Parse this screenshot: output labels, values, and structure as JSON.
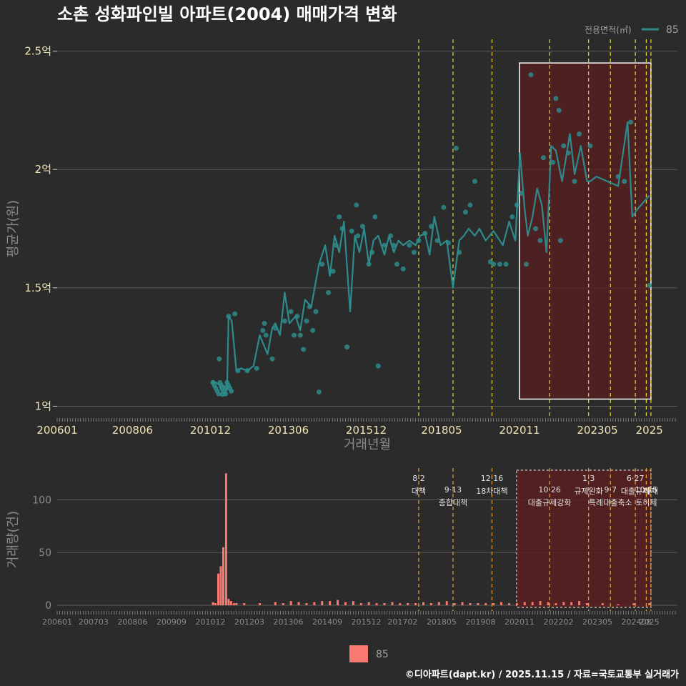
{
  "chart_data": [
    {
      "type": "line",
      "title": "소촌 성화파인빌 아파트(2004) 매매가격 변화",
      "xlabel": "거래년월",
      "ylabel": "평균가(원)",
      "y_tick_labels": [
        "1억",
        "1.5억",
        "2억",
        "2.5억"
      ],
      "y_tick_values": [
        1.0,
        1.5,
        2.0,
        2.5
      ],
      "x_tick_labels": [
        "200601",
        "200806",
        "201012",
        "201306",
        "201512",
        "201805",
        "202011",
        "202305",
        "2025"
      ],
      "x_tick_values": [
        2006.0,
        2008.417,
        2010.917,
        2013.417,
        2015.917,
        2018.333,
        2020.833,
        2023.333,
        2025.0
      ],
      "xlim": [
        2006.0,
        2025.9
      ],
      "ylim": [
        0.95,
        2.55
      ],
      "legend_title": "전용면적(㎡)",
      "legend_entries": [
        "85"
      ],
      "series_color": "#2e8b8b",
      "highlight_color": "#ffffff",
      "policy_line_color": "#e6d93a",
      "highlight_range": [
        2020.83,
        2025.05
      ],
      "highlight_y": [
        1.03,
        2.45
      ],
      "series": [
        {
          "name": "85",
          "x": [
            2011.0,
            2011.1,
            2011.2,
            2011.25,
            2011.35,
            2011.45,
            2011.5,
            2011.6,
            2011.75,
            2011.9,
            2012.1,
            2012.3,
            2012.5,
            2012.75,
            2012.9,
            2013.0,
            2013.15,
            2013.3,
            2013.45,
            2013.65,
            2013.8,
            2013.95,
            2014.15,
            2014.4,
            2014.6,
            2014.75,
            2014.9,
            2015.05,
            2015.2,
            2015.4,
            2015.55,
            2015.7,
            2015.85,
            2016.0,
            2016.15,
            2016.3,
            2016.5,
            2016.65,
            2016.8,
            2016.95,
            2017.1,
            2017.3,
            2017.5,
            2017.65,
            2017.8,
            2017.95,
            2018.1,
            2018.3,
            2018.5,
            2018.7,
            2018.9,
            2019.05,
            2019.2,
            2019.4,
            2019.55,
            2019.75,
            2020.0,
            2020.3,
            2020.5,
            2020.7,
            2020.85,
            2021.0,
            2021.1,
            2021.25,
            2021.4,
            2021.55,
            2021.7,
            2021.85,
            2022.0,
            2022.2,
            2022.45,
            2022.6,
            2022.8,
            2023.0,
            2023.1,
            2023.3,
            2024.0,
            2024.3,
            2024.45,
            2024.6,
            2025.0
          ],
          "y": [
            1.1,
            1.1,
            1.09,
            1.07,
            1.05,
            1.07,
            1.38,
            1.36,
            1.15,
            1.16,
            1.15,
            1.17,
            1.3,
            1.22,
            1.33,
            1.35,
            1.3,
            1.48,
            1.35,
            1.38,
            1.32,
            1.45,
            1.42,
            1.6,
            1.68,
            1.55,
            1.72,
            1.65,
            1.78,
            1.4,
            1.72,
            1.65,
            1.75,
            1.6,
            1.7,
            1.72,
            1.64,
            1.72,
            1.65,
            1.7,
            1.68,
            1.7,
            1.68,
            1.72,
            1.73,
            1.64,
            1.8,
            1.68,
            1.7,
            1.5,
            1.7,
            1.72,
            1.75,
            1.72,
            1.75,
            1.7,
            1.74,
            1.68,
            1.78,
            1.7,
            2.07,
            1.83,
            1.72,
            1.8,
            1.92,
            1.85,
            1.65,
            2.1,
            2.08,
            1.95,
            2.15,
            1.98,
            2.1,
            1.95,
            1.95,
            1.97,
            1.93,
            2.2,
            1.8,
            1.83,
            1.89
          ]
        }
      ],
      "scatter_points": {
        "x": [
          2011.0,
          2011.2,
          2011.3,
          2011.4,
          2011.5,
          2011.7,
          2011.8,
          2012.1,
          2012.4,
          2012.6,
          2012.65,
          2012.7,
          2012.9,
          2013.0,
          2013.3,
          2013.5,
          2013.6,
          2013.7,
          2013.8,
          2013.9,
          2014.0,
          2014.1,
          2014.2,
          2014.3,
          2014.4,
          2014.5,
          2014.7,
          2014.85,
          2014.95,
          2015.05,
          2015.15,
          2015.3,
          2015.45,
          2015.6,
          2015.65,
          2015.8,
          2016.0,
          2016.1,
          2016.2,
          2016.3,
          2016.5,
          2016.7,
          2016.8,
          2016.9,
          2017.1,
          2017.3,
          2017.45,
          2017.6,
          2017.8,
          2018.0,
          2018.2,
          2018.4,
          2018.55,
          2018.8,
          2018.9,
          2019.1,
          2019.25,
          2019.4,
          2019.9,
          2020.0,
          2020.2,
          2020.4,
          2020.6,
          2020.75,
          2020.9,
          2021.05,
          2021.2,
          2021.35,
          2021.5,
          2021.6,
          2021.9,
          2022.0,
          2022.1,
          2022.15,
          2022.25,
          2022.4,
          2022.6,
          2022.75,
          2023.1,
          2024.0,
          2024.2,
          2024.4,
          2025.0
        ],
        "y": [
          1.1,
          1.2,
          1.05,
          1.08,
          1.38,
          1.39,
          1.15,
          1.15,
          1.16,
          1.32,
          1.35,
          1.3,
          1.2,
          1.33,
          1.36,
          1.4,
          1.3,
          1.38,
          1.3,
          1.24,
          1.36,
          1.42,
          1.32,
          1.4,
          1.06,
          1.6,
          1.48,
          1.57,
          1.68,
          1.8,
          1.75,
          1.25,
          1.74,
          1.85,
          1.72,
          1.76,
          1.6,
          1.65,
          1.8,
          1.17,
          1.68,
          1.72,
          1.68,
          1.6,
          1.58,
          1.68,
          1.65,
          1.7,
          1.73,
          1.76,
          1.7,
          1.84,
          1.69,
          2.09,
          1.65,
          1.82,
          1.85,
          1.95,
          1.61,
          1.6,
          1.6,
          1.6,
          1.8,
          1.85,
          1.9,
          1.6,
          2.4,
          1.75,
          1.7,
          2.05,
          2.03,
          2.3,
          2.25,
          1.7,
          2.1,
          2.07,
          1.95,
          2.15,
          2.1,
          1.97,
          1.95,
          2.2,
          1.51
        ]
      },
      "policy_lines_x": [
        2017.6,
        2018.7,
        2019.95,
        2021.8,
        2023.05,
        2023.75,
        2024.55,
        2024.9,
        2025.05
      ]
    },
    {
      "type": "bar",
      "ylabel": "거래량(건)",
      "y_tick_labels": [
        "0",
        "50",
        "100"
      ],
      "y_tick_values": [
        0,
        50,
        100
      ],
      "ylim": [
        0,
        130
      ],
      "x_tick_labels": [
        "200601",
        "200703",
        "200806",
        "200909",
        "201012",
        "201203",
        "201306",
        "201409",
        "201512",
        "201702",
        "201805",
        "201908",
        "202011",
        "202202",
        "202305",
        "202408",
        "2025"
      ],
      "x_tick_values": [
        2006.0,
        2007.167,
        2008.417,
        2009.667,
        2010.917,
        2012.167,
        2013.417,
        2014.667,
        2015.917,
        2017.083,
        2018.333,
        2019.583,
        2020.833,
        2022.083,
        2023.333,
        2024.583,
        2025.0
      ],
      "bar_color": "#f87970",
      "legend_entries": [
        "85"
      ],
      "bars": {
        "x": [
          2011.0,
          2011.08,
          2011.17,
          2011.25,
          2011.33,
          2011.42,
          2011.5,
          2011.58,
          2011.67,
          2011.75,
          2012.0,
          2012.5,
          2013.0,
          2013.25,
          2013.5,
          2013.75,
          2014.0,
          2014.25,
          2014.5,
          2014.75,
          2015.0,
          2015.25,
          2015.5,
          2015.75,
          2016.0,
          2016.25,
          2016.5,
          2016.75,
          2017.0,
          2017.25,
          2017.5,
          2017.75,
          2018.0,
          2018.25,
          2018.5,
          2018.75,
          2019.0,
          2019.25,
          2019.5,
          2019.75,
          2020.0,
          2020.25,
          2020.5,
          2020.75,
          2021.0,
          2021.25,
          2021.5,
          2021.75,
          2022.0,
          2022.25,
          2022.5,
          2022.75,
          2023.0,
          2023.5,
          2024.0,
          2024.5,
          2025.0
        ],
        "values": [
          3,
          2,
          30,
          37,
          55,
          125,
          6,
          4,
          2,
          2,
          2,
          2,
          3,
          2,
          4,
          3,
          2,
          3,
          4,
          4,
          5,
          3,
          4,
          2,
          3,
          2,
          2,
          3,
          2,
          2,
          2,
          3,
          2,
          3,
          4,
          2,
          3,
          2,
          2,
          2,
          2,
          3,
          2,
          2,
          3,
          3,
          4,
          3,
          2,
          3,
          3,
          4,
          2,
          2,
          1,
          2,
          2
        ]
      },
      "policy_events": [
        {
          "x": 2017.6,
          "date": "8·2",
          "label": "대책"
        },
        {
          "x": 2018.7,
          "date": "9·13",
          "label": "종합대책"
        },
        {
          "x": 2019.95,
          "date": "12·16",
          "label": "18차대책"
        },
        {
          "x": 2021.8,
          "date": "10·26",
          "label": "대출규제강화"
        },
        {
          "x": 2023.05,
          "date": "1·3",
          "label": "규제완화"
        },
        {
          "x": 2023.75,
          "date": "9·7",
          "label": "특례대출축소"
        },
        {
          "x": 2024.55,
          "date": "6·27",
          "label": "대출규제"
        },
        {
          "x": 2024.9,
          "date": "10·15",
          "label": "토허제"
        },
        {
          "x": 2025.05,
          "date": "",
          "label": "해제"
        }
      ]
    }
  ],
  "footer": "©디아파트(dapt.kr) / 2025.11.15 / 자료=국토교통부 실거래가"
}
